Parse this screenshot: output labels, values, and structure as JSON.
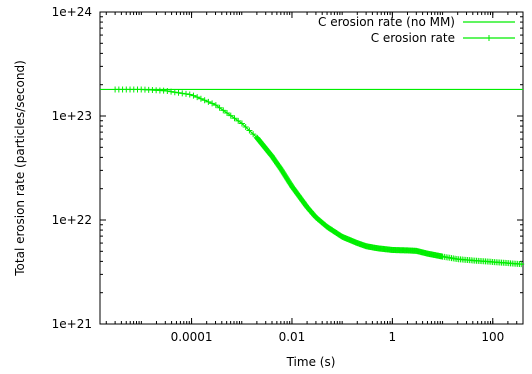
{
  "chart_data": {
    "type": "line",
    "title": "",
    "xlabel": "Time (s)",
    "ylabel": "Total erosion rate (particles/second)",
    "x_scale": "log",
    "y_scale": "log",
    "xlim": [
      1.5e-06,
      400
    ],
    "ylim": [
      1e+21,
      1e+24
    ],
    "x_ticks": [
      {
        "value": 0.0001,
        "label": "0.0001"
      },
      {
        "value": 0.01,
        "label": "0.01"
      },
      {
        "value": 1,
        "label": "1"
      },
      {
        "value": 100,
        "label": "100"
      }
    ],
    "y_ticks": [
      {
        "value": 1e+21,
        "label": "1e+21"
      },
      {
        "value": 1e+22,
        "label": "1e+22"
      },
      {
        "value": 1e+23,
        "label": "1e+23"
      },
      {
        "value": 1e+24,
        "label": "1e+24"
      }
    ],
    "grid": false,
    "legend_position": "top-right",
    "series": [
      {
        "name": "C erosion rate (no MM)",
        "color": "#00ee00",
        "marker": "none",
        "x": [
          1.5e-06,
          400
        ],
        "y": [
          1.8e+23,
          1.8e+23
        ]
      },
      {
        "name": "C erosion rate",
        "color": "#00ee00",
        "marker": "plus",
        "x": [
          3e-06,
          1e-05,
          3e-05,
          0.0001,
          0.0003,
          0.001,
          0.002,
          0.004,
          0.006,
          0.01,
          0.02,
          0.03,
          0.05,
          0.1,
          0.2,
          0.3,
          0.5,
          1,
          2,
          3,
          5,
          10,
          20,
          50,
          100,
          200,
          400
        ],
        "y": [
          1.8e+23,
          1.8e+23,
          1.75e+23,
          1.6e+23,
          1.28e+23,
          8.5e+22,
          6.2e+22,
          4.1e+22,
          3.1e+22,
          2.1e+22,
          1.33e+22,
          1.06e+22,
          8.6e+21,
          6.9e+21,
          6e+21,
          5.6e+21,
          5.35e+21,
          5.15e+21,
          5.1e+21,
          5.05e+21,
          4.75e+21,
          4.45e+21,
          4.2e+21,
          4.05e+21,
          3.95e+21,
          3.85e+21,
          3.75e+21
        ]
      }
    ]
  }
}
